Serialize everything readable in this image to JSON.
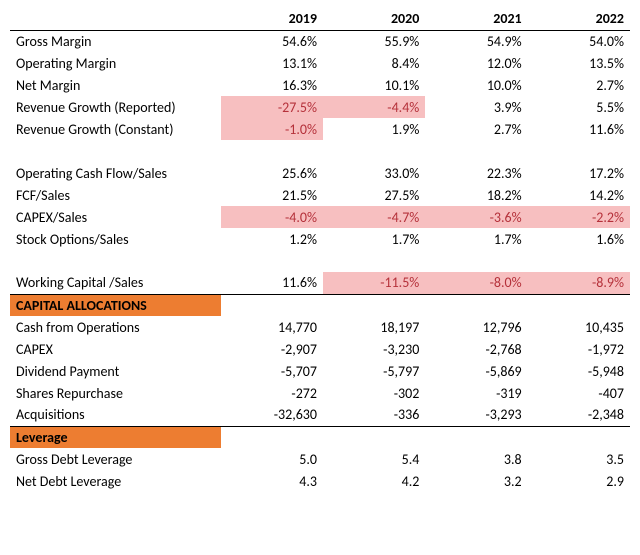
{
  "colors": {
    "background": "#ffffff",
    "text": "#000000",
    "section_bg": "#ed7d31",
    "neg_bg": "#f7bfc0",
    "neg_text": "#b5313a",
    "border": "#000000"
  },
  "typography": {
    "font_family": "Calibri, Arial, sans-serif",
    "font_size_pt": 11,
    "header_weight": "bold"
  },
  "years": [
    "2019",
    "2020",
    "2021",
    "2022"
  ],
  "margins": {
    "gross": {
      "label": "Gross Margin",
      "v": [
        "54.6%",
        "55.9%",
        "54.9%",
        "54.0%"
      ]
    },
    "operating": {
      "label": "Operating Margin",
      "v": [
        "13.1%",
        "8.4%",
        "12.0%",
        "13.5%"
      ]
    },
    "net": {
      "label": "Net Margin",
      "v": [
        "16.3%",
        "10.1%",
        "10.0%",
        "2.7%"
      ]
    },
    "rev_rep": {
      "label": "Revenue Growth (Reported)",
      "v": [
        "-27.5%",
        "-4.4%",
        "3.9%",
        "5.5%"
      ],
      "hl": [
        true,
        true,
        false,
        false
      ]
    },
    "rev_const": {
      "label": "Revenue Growth (Constant)",
      "v": [
        "-1.0%",
        "1.9%",
        "2.7%",
        "11.6%"
      ],
      "hl": [
        true,
        false,
        false,
        false
      ]
    }
  },
  "cash": {
    "ocf_sales": {
      "label": "Operating Cash Flow/Sales",
      "v": [
        "25.6%",
        "33.0%",
        "22.3%",
        "17.2%"
      ]
    },
    "fcf_sales": {
      "label": "FCF/Sales",
      "v": [
        "21.5%",
        "27.5%",
        "18.2%",
        "14.2%"
      ]
    },
    "capex_sales": {
      "label": "CAPEX/Sales",
      "v": [
        "-4.0%",
        "-4.7%",
        "-3.6%",
        "-2.2%"
      ],
      "hl": [
        true,
        true,
        true,
        true
      ]
    },
    "so_sales": {
      "label": "Stock Options/Sales",
      "v": [
        "1.2%",
        "1.7%",
        "1.7%",
        "1.6%"
      ]
    }
  },
  "wc": {
    "wc_sales": {
      "label": "Working Capital /Sales",
      "v": [
        "11.6%",
        "-11.5%",
        "-8.0%",
        "-8.9%"
      ],
      "hl": [
        false,
        true,
        true,
        true
      ]
    }
  },
  "capalloc": {
    "header": "CAPITAL ALLOCATIONS",
    "cfo": {
      "label": "Cash from Operations",
      "v": [
        "14,770",
        "18,197",
        "12,796",
        "10,435"
      ]
    },
    "capex": {
      "label": "CAPEX",
      "v": [
        "-2,907",
        "-3,230",
        "-2,768",
        "-1,972"
      ]
    },
    "div": {
      "label": "Dividend Payment",
      "v": [
        "-5,707",
        "-5,797",
        "-5,869",
        "-5,948"
      ]
    },
    "repo": {
      "label": "Shares Repurchase",
      "v": [
        "-272",
        "-302",
        "-319",
        "-407"
      ]
    },
    "acq": {
      "label": "Acquisitions",
      "v": [
        "-32,630",
        "-336",
        "-3,293",
        "-2,348"
      ]
    }
  },
  "leverage": {
    "header": "Leverage",
    "gross": {
      "label": "Gross Debt Leverage",
      "v": [
        "5.0",
        "5.4",
        "3.8",
        "3.5"
      ]
    },
    "net": {
      "label": "Net Debt Leverage",
      "v": [
        "4.3",
        "4.2",
        "3.2",
        "2.9"
      ]
    }
  }
}
